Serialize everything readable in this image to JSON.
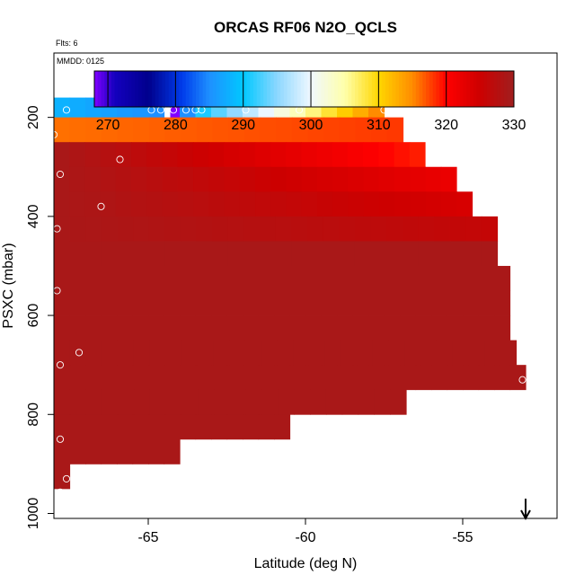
{
  "chart_data": {
    "type": "heatmap",
    "title": "ORCAS RF06 N2O_QCLS",
    "subtitle": "Flts: 6",
    "annotation": "MMDD: 0125",
    "xlabel": "Latitude (deg N)",
    "ylabel": "PSXC (mbar)",
    "x_ticks": [
      "-65",
      "-60",
      "-55"
    ],
    "y_ticks": [
      "200",
      "400",
      "600",
      "800",
      "1000"
    ],
    "xlim": [
      -68.0,
      -52.0
    ],
    "ylim": [
      1010,
      70
    ],
    "y_reversed": true,
    "grid": false,
    "colorbar": {
      "range": [
        268,
        330
      ],
      "ticks": [
        "270",
        "280",
        "290",
        "300",
        "310",
        "320",
        "330"
      ],
      "placement": "top-inside"
    },
    "cell_width_deg": 0.5,
    "rows": [
      {
        "p_top": 160,
        "p_bottom": 200,
        "segments": [
          {
            "x0": -68.0,
            "x1": -64.5,
            "v0": 288,
            "v1": 285
          },
          {
            "x0": -64.3,
            "x1": -64.0,
            "v0": 268,
            "v1": 268
          },
          {
            "x0": -64.0,
            "x1": -63.5,
            "v0": 285,
            "v1": 287
          },
          {
            "x0": -63.5,
            "x1": -57.5,
            "v0": 291,
            "v1": 315
          }
        ]
      },
      {
        "p_top": 200,
        "p_bottom": 250,
        "segments": [
          {
            "x0": -68.0,
            "x1": -56.9,
            "v0": 316,
            "v1": 318
          }
        ]
      },
      {
        "p_top": 250,
        "p_bottom": 300,
        "segments": [
          {
            "x0": -68.0,
            "x1": -56.2,
            "v0": 329,
            "v1": 319
          }
        ]
      },
      {
        "p_top": 300,
        "p_bottom": 350,
        "segments": [
          {
            "x0": -68.0,
            "x1": -55.2,
            "v0": 329,
            "v1": 322
          }
        ]
      },
      {
        "p_top": 350,
        "p_bottom": 400,
        "segments": [
          {
            "x0": -68.0,
            "x1": -54.7,
            "v0": 329,
            "v1": 324
          }
        ]
      },
      {
        "p_top": 400,
        "p_bottom": 450,
        "segments": [
          {
            "x0": -68.0,
            "x1": -53.9,
            "v0": 329,
            "v1": 326
          }
        ]
      },
      {
        "p_top": 450,
        "p_bottom": 500,
        "segments": [
          {
            "x0": -68.0,
            "x1": -53.9,
            "v0": 329,
            "v1": 329
          }
        ]
      },
      {
        "p_top": 500,
        "p_bottom": 550,
        "segments": [
          {
            "x0": -68.0,
            "x1": -53.5,
            "v0": 329,
            "v1": 329
          }
        ]
      },
      {
        "p_top": 550,
        "p_bottom": 600,
        "segments": [
          {
            "x0": -68.0,
            "x1": -53.5,
            "v0": 329,
            "v1": 329
          }
        ]
      },
      {
        "p_top": 600,
        "p_bottom": 650,
        "segments": [
          {
            "x0": -68.0,
            "x1": -53.5,
            "v0": 329,
            "v1": 329
          }
        ]
      },
      {
        "p_top": 650,
        "p_bottom": 700,
        "segments": [
          {
            "x0": -68.0,
            "x1": -53.3,
            "v0": 329,
            "v1": 329
          }
        ]
      },
      {
        "p_top": 700,
        "p_bottom": 750,
        "segments": [
          {
            "x0": -68.0,
            "x1": -53.0,
            "v0": 329,
            "v1": 329
          }
        ]
      },
      {
        "p_top": 750,
        "p_bottom": 800,
        "segments": [
          {
            "x0": -68.0,
            "x1": -56.8,
            "v0": 329,
            "v1": 329
          }
        ]
      },
      {
        "p_top": 800,
        "p_bottom": 850,
        "segments": [
          {
            "x0": -68.0,
            "x1": -60.5,
            "v0": 329,
            "v1": 329
          }
        ]
      },
      {
        "p_top": 850,
        "p_bottom": 900,
        "segments": [
          {
            "x0": -68.0,
            "x1": -64.0,
            "v0": 329,
            "v1": 329
          }
        ]
      },
      {
        "p_top": 900,
        "p_bottom": 950,
        "segments": [
          {
            "x0": -68.0,
            "x1": -67.5,
            "v0": 329,
            "v1": 329
          }
        ]
      }
    ],
    "points": [
      {
        "lat": -67.6,
        "p": 185
      },
      {
        "lat": -64.9,
        "p": 185
      },
      {
        "lat": -64.6,
        "p": 185
      },
      {
        "lat": -64.2,
        "p": 185
      },
      {
        "lat": -63.8,
        "p": 185
      },
      {
        "lat": -63.5,
        "p": 185
      },
      {
        "lat": -63.3,
        "p": 185
      },
      {
        "lat": -61.9,
        "p": 185
      },
      {
        "lat": -60.2,
        "p": 185
      },
      {
        "lat": -57.5,
        "p": 185
      },
      {
        "lat": -68.0,
        "p": 235
      },
      {
        "lat": -67.8,
        "p": 315
      },
      {
        "lat": -65.9,
        "p": 285
      },
      {
        "lat": -66.5,
        "p": 380
      },
      {
        "lat": -67.9,
        "p": 425
      },
      {
        "lat": -53.7,
        "p": 445
      },
      {
        "lat": -67.9,
        "p": 550
      },
      {
        "lat": -67.2,
        "p": 675
      },
      {
        "lat": -67.8,
        "p": 700
      },
      {
        "lat": -53.1,
        "p": 730
      },
      {
        "lat": -67.8,
        "p": 850
      },
      {
        "lat": -67.6,
        "p": 930
      },
      {
        "lat": -67.8,
        "p": 957
      }
    ],
    "marker": {
      "type": "down-arrow",
      "lat": -53.0
    }
  }
}
